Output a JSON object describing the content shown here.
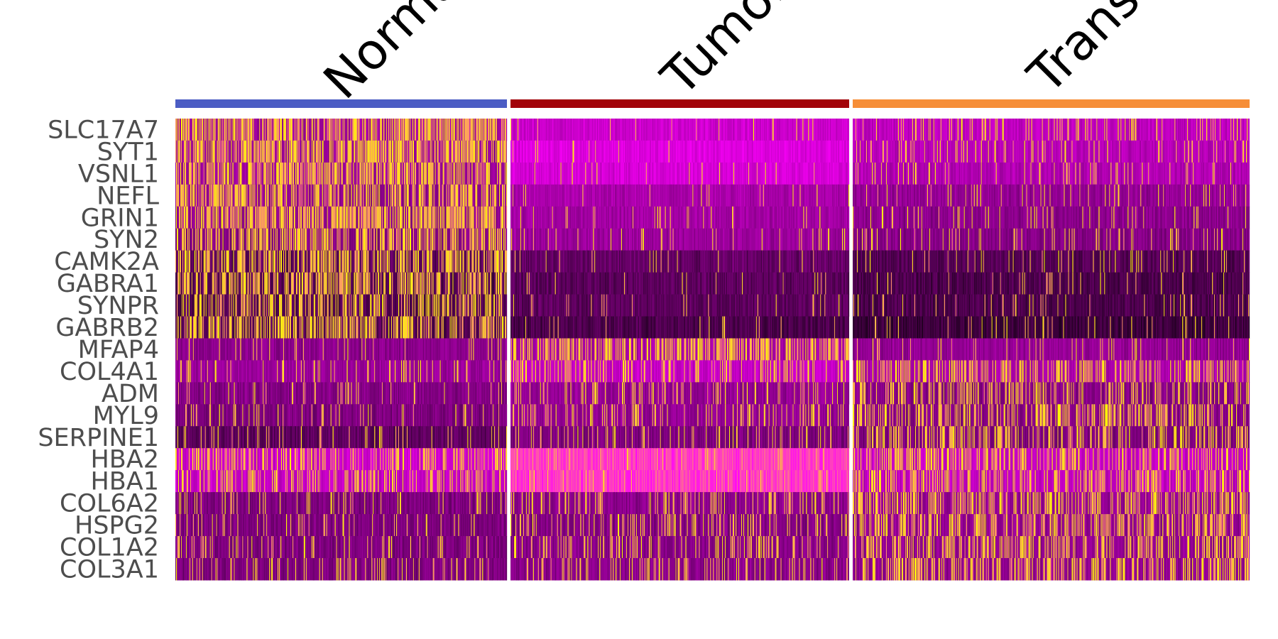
{
  "chart_data": {
    "type": "heatmap",
    "title": "",
    "xlabel": "",
    "ylabel": "",
    "groups": [
      {
        "name": "Normal",
        "color": "#4C5DC4",
        "n_cells": 470
      },
      {
        "name": "Tumor",
        "color": "#A20309",
        "n_cells": 480
      },
      {
        "name": "Transition",
        "color": "#F68E38",
        "n_cells": 560
      }
    ],
    "genes": [
      "SLC17A7",
      "SYT1",
      "VSNL1",
      "NEFL",
      "GRIN1",
      "SYN2",
      "CAMK2A",
      "GABRA1",
      "SYNPR",
      "GABRB2",
      "MFAP4",
      "COL4A1",
      "ADM",
      "MYL9",
      "SERPINE1",
      "HBA2",
      "HBA1",
      "COL6A2",
      "HSPG2",
      "COL1A2",
      "COL3A1"
    ],
    "colorscale": [
      "#000000",
      "#8B008B",
      "#FF00FF",
      "#FFFF00"
    ],
    "value_range": [
      -2.5,
      2.5
    ],
    "pattern": {
      "description_levels": "row base level per group (0=black,1=yellow) and fraction of yellow cells",
      "base": [
        [
          0.4,
          0.52,
          0.48
        ],
        [
          0.38,
          0.57,
          0.46
        ],
        [
          0.38,
          0.55,
          0.44
        ],
        [
          0.35,
          0.42,
          0.36
        ],
        [
          0.35,
          0.4,
          0.34
        ],
        [
          0.32,
          0.38,
          0.32
        ],
        [
          0.22,
          0.24,
          0.2
        ],
        [
          0.2,
          0.22,
          0.18
        ],
        [
          0.2,
          0.22,
          0.18
        ],
        [
          0.2,
          0.18,
          0.14
        ],
        [
          0.34,
          0.42,
          0.36
        ],
        [
          0.38,
          0.5,
          0.42
        ],
        [
          0.32,
          0.36,
          0.32
        ],
        [
          0.3,
          0.36,
          0.32
        ],
        [
          0.22,
          0.3,
          0.3
        ],
        [
          0.52,
          0.75,
          0.5
        ],
        [
          0.5,
          0.74,
          0.48
        ],
        [
          0.3,
          0.34,
          0.36
        ],
        [
          0.3,
          0.32,
          0.36
        ],
        [
          0.3,
          0.33,
          0.35
        ],
        [
          0.3,
          0.33,
          0.35
        ]
      ],
      "yellow": [
        [
          0.55,
          0.04,
          0.12
        ],
        [
          0.55,
          0.03,
          0.1
        ],
        [
          0.5,
          0.03,
          0.09
        ],
        [
          0.5,
          0.04,
          0.08
        ],
        [
          0.55,
          0.05,
          0.08
        ],
        [
          0.45,
          0.06,
          0.1
        ],
        [
          0.45,
          0.04,
          0.06
        ],
        [
          0.45,
          0.03,
          0.06
        ],
        [
          0.4,
          0.03,
          0.06
        ],
        [
          0.42,
          0.03,
          0.05
        ],
        [
          0.06,
          0.45,
          0.08
        ],
        [
          0.12,
          0.22,
          0.35
        ],
        [
          0.06,
          0.12,
          0.3
        ],
        [
          0.08,
          0.18,
          0.32
        ],
        [
          0.08,
          0.12,
          0.35
        ],
        [
          0.3,
          0.05,
          0.35
        ],
        [
          0.28,
          0.05,
          0.33
        ],
        [
          0.12,
          0.18,
          0.38
        ],
        [
          0.1,
          0.16,
          0.36
        ],
        [
          0.12,
          0.18,
          0.36
        ],
        [
          0.12,
          0.18,
          0.35
        ]
      ]
    }
  }
}
